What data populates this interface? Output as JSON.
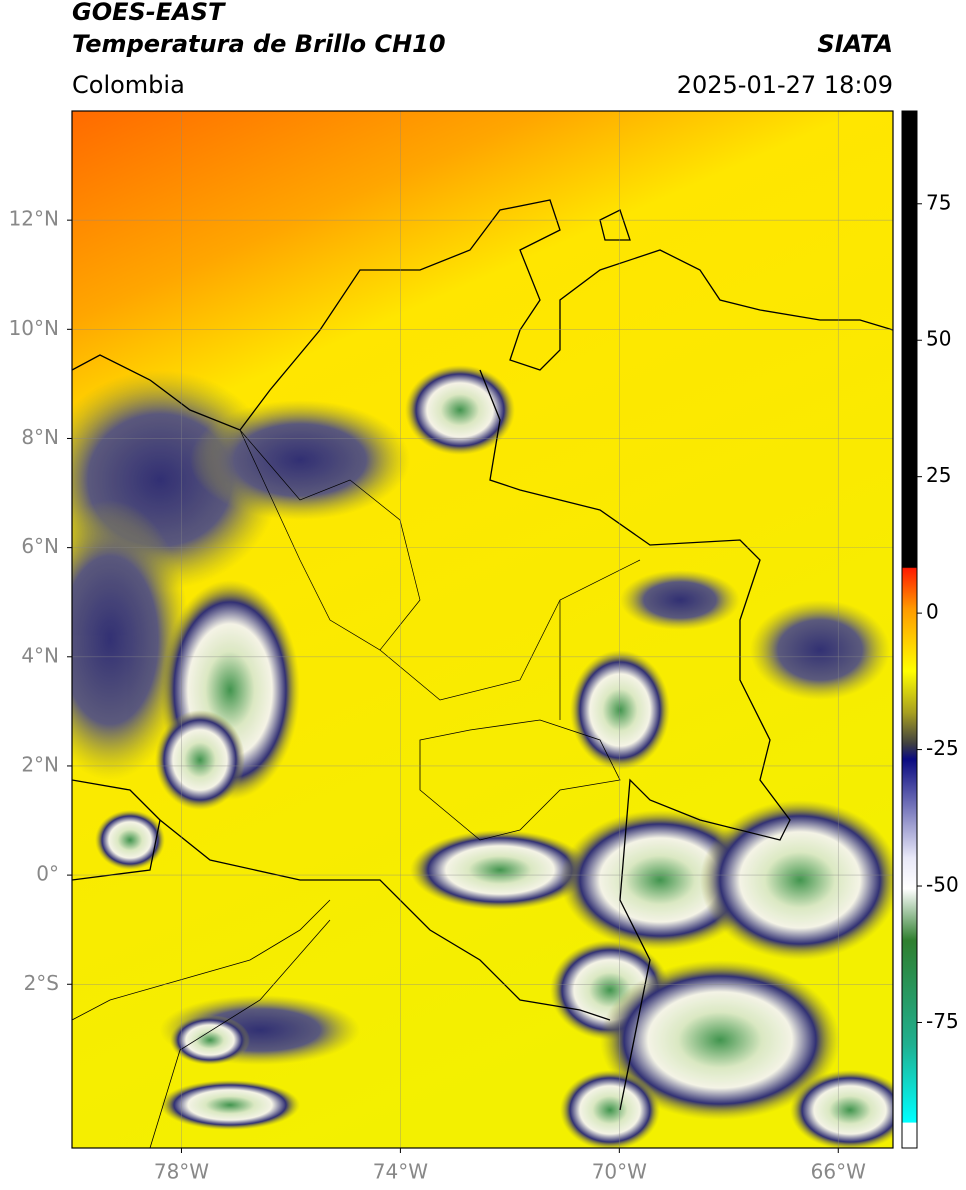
{
  "header": {
    "title": "GOES-EAST",
    "subtitle": "Temperatura de Brillo CH10",
    "source": "SIATA",
    "region": "Colombia",
    "datetime": "2025-01-27 18:09"
  },
  "map": {
    "xlim": [
      -80,
      -65
    ],
    "ylim": [
      -5,
      14
    ],
    "grid": true,
    "xticks": [
      {
        "value": -78,
        "label": "78°W"
      },
      {
        "value": -74,
        "label": "74°W"
      },
      {
        "value": -70,
        "label": "70°W"
      },
      {
        "value": -66,
        "label": "66°W"
      }
    ],
    "yticks": [
      {
        "value": 12,
        "label": "12°N"
      },
      {
        "value": 10,
        "label": "10°N"
      },
      {
        "value": 8,
        "label": "8°N"
      },
      {
        "value": 6,
        "label": "6°N"
      },
      {
        "value": 4,
        "label": "4°N"
      },
      {
        "value": 2,
        "label": "2°N"
      },
      {
        "value": 0,
        "label": "0°"
      },
      {
        "value": -2,
        "label": "2°S"
      }
    ]
  },
  "colorbar": {
    "lim": [
      -98,
      92
    ],
    "ticks": [
      75,
      50,
      25,
      0,
      -25,
      -50,
      -75
    ]
  }
}
